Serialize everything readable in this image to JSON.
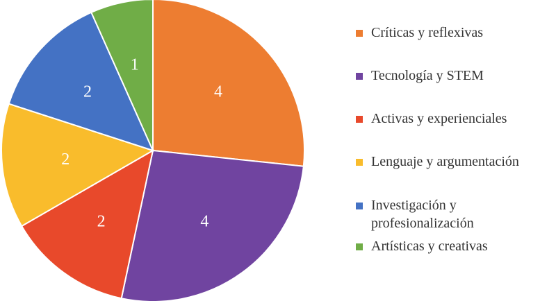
{
  "chart_data": {
    "type": "pie",
    "title": "",
    "categories": [
      "Críticas y reflexivas",
      "Tecnología y STEM",
      "Activas y experienciales",
      "Lenguaje y argumentación",
      "Investigación y profesionalización",
      "Artísticas y creativas"
    ],
    "values": [
      4,
      4,
      2,
      2,
      2,
      1
    ],
    "colors": [
      "#ED7D31",
      "#7044A0",
      "#E8492B",
      "#F9BC2C",
      "#4472C4",
      "#70AD47"
    ],
    "legend_position": "right",
    "data_labels": [
      "4",
      "4",
      "2",
      "2",
      "2",
      "1"
    ]
  }
}
